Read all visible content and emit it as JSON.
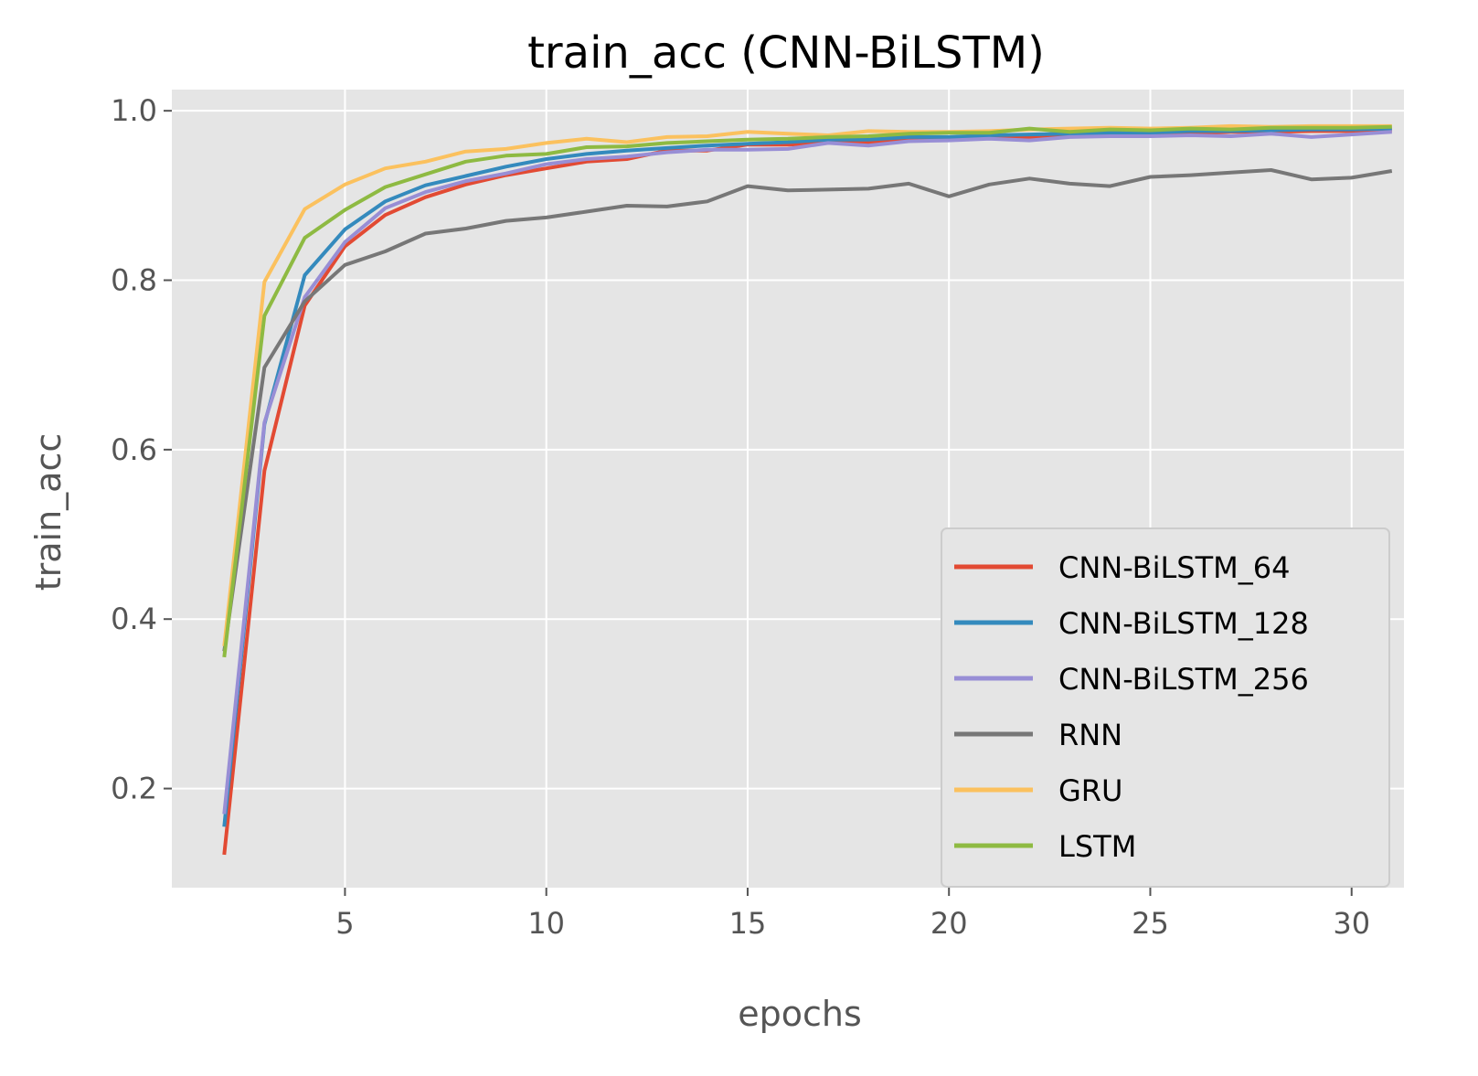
{
  "chart_data": {
    "type": "line",
    "title": "train_acc (CNN-BiLSTM)",
    "xlabel": "epochs",
    "ylabel": "train_acc",
    "xlim": [
      0.7,
      31.3
    ],
    "ylim": [
      0.083,
      1.025
    ],
    "xticks": [
      5,
      10,
      15,
      20,
      25,
      30
    ],
    "xtick_labels": [
      "5",
      "10",
      "15",
      "20",
      "25",
      "30"
    ],
    "yticks": [
      0.2,
      0.4,
      0.6,
      0.8,
      1.0
    ],
    "ytick_labels": [
      "0.2",
      "0.4",
      "0.6",
      "0.8",
      "1.0"
    ],
    "grid": true,
    "legend_position": "lower-right",
    "x": [
      2,
      3,
      4,
      5,
      6,
      7,
      8,
      9,
      10,
      11,
      12,
      13,
      14,
      15,
      16,
      17,
      18,
      19,
      20,
      21,
      22,
      23,
      24,
      25,
      26,
      27,
      28,
      29,
      30,
      31
    ],
    "series": [
      {
        "name": "CNN-BiLSTM_64",
        "color": "#E24A33",
        "values": [
          0.122,
          0.575,
          0.77,
          0.84,
          0.877,
          0.898,
          0.913,
          0.924,
          0.932,
          0.94,
          0.943,
          0.953,
          0.953,
          0.96,
          0.96,
          0.962,
          0.963,
          0.966,
          0.968,
          0.968,
          0.969,
          0.972,
          0.972,
          0.972,
          0.973,
          0.975,
          0.975,
          0.976,
          0.976,
          0.977
        ]
      },
      {
        "name": "CNN-BiLSTM_128",
        "color": "#348ABD",
        "values": [
          0.155,
          0.63,
          0.806,
          0.86,
          0.893,
          0.912,
          0.923,
          0.934,
          0.943,
          0.949,
          0.953,
          0.956,
          0.959,
          0.961,
          0.963,
          0.966,
          0.966,
          0.969,
          0.969,
          0.971,
          0.972,
          0.973,
          0.974,
          0.974,
          0.976,
          0.976,
          0.977,
          0.978,
          0.978,
          0.979
        ]
      },
      {
        "name": "CNN-BiLSTM_256",
        "color": "#988ED5",
        "values": [
          0.17,
          0.632,
          0.78,
          0.845,
          0.885,
          0.904,
          0.917,
          0.926,
          0.937,
          0.943,
          0.946,
          0.951,
          0.954,
          0.954,
          0.955,
          0.962,
          0.959,
          0.964,
          0.965,
          0.967,
          0.965,
          0.969,
          0.97,
          0.97,
          0.971,
          0.97,
          0.973,
          0.969,
          0.972,
          0.975
        ]
      },
      {
        "name": "RNN",
        "color": "#777777",
        "values": [
          0.362,
          0.697,
          0.775,
          0.818,
          0.834,
          0.855,
          0.861,
          0.87,
          0.874,
          0.881,
          0.888,
          0.887,
          0.893,
          0.911,
          0.906,
          0.907,
          0.908,
          0.914,
          0.899,
          0.913,
          0.92,
          0.914,
          0.911,
          0.922,
          0.924,
          0.927,
          0.93,
          0.919,
          0.921,
          0.929
        ]
      },
      {
        "name": "GRU",
        "color": "#FBC15E",
        "values": [
          0.368,
          0.798,
          0.884,
          0.913,
          0.932,
          0.94,
          0.952,
          0.955,
          0.962,
          0.967,
          0.963,
          0.969,
          0.97,
          0.975,
          0.973,
          0.971,
          0.976,
          0.975,
          0.975,
          0.976,
          0.978,
          0.979,
          0.98,
          0.979,
          0.98,
          0.982,
          0.981,
          0.982,
          0.982,
          0.982
        ]
      },
      {
        "name": "LSTM",
        "color": "#8EBA42",
        "values": [
          0.355,
          0.758,
          0.85,
          0.883,
          0.91,
          0.925,
          0.94,
          0.947,
          0.949,
          0.957,
          0.958,
          0.962,
          0.964,
          0.966,
          0.967,
          0.969,
          0.97,
          0.973,
          0.974,
          0.974,
          0.979,
          0.975,
          0.978,
          0.977,
          0.979,
          0.978,
          0.98,
          0.98,
          0.98,
          0.981
        ]
      }
    ],
    "colors": {
      "plot_background": "#E5E5E5",
      "grid": "#FFFFFF",
      "legend_background": "#E5E5E5",
      "legend_border": "#CCCCCC"
    }
  }
}
